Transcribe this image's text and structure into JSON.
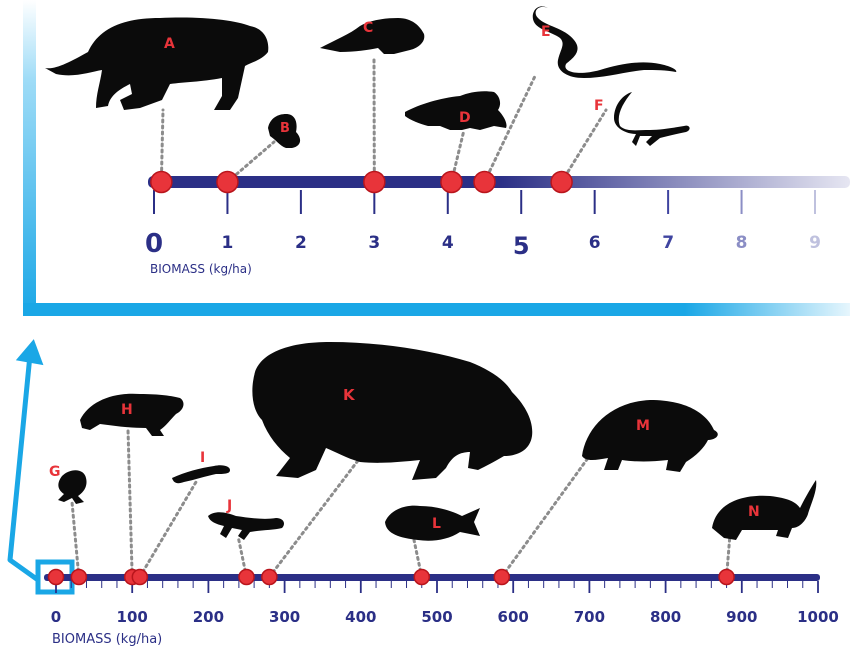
{
  "top_axis": {
    "title": "BIOMASS (kg/ha)",
    "ticks": [
      "0",
      "1",
      "2",
      "3",
      "4",
      "5",
      "6",
      "7",
      "8",
      "9"
    ],
    "range": [
      0,
      9
    ],
    "markers": [
      {
        "letter": "A",
        "value": 0.1
      },
      {
        "letter": "B",
        "value": 1.0
      },
      {
        "letter": "C",
        "value": 3.0
      },
      {
        "letter": "D",
        "value": 4.05
      },
      {
        "letter": "E",
        "value": 4.5
      },
      {
        "letter": "F",
        "value": 5.55
      }
    ]
  },
  "bottom_axis": {
    "title": "BIOMASS (kg/ha)",
    "ticks": [
      "0",
      "100",
      "200",
      "300",
      "400",
      "500",
      "600",
      "700",
      "800",
      "900",
      "1000"
    ],
    "range": [
      0,
      1000
    ],
    "markers": [
      {
        "letter": "G",
        "value": 30
      },
      {
        "letter": "H",
        "value": 100
      },
      {
        "letter": "I",
        "value": 110
      },
      {
        "letter": "J",
        "value": 250
      },
      {
        "letter": "K",
        "value": 280
      },
      {
        "letter": "L",
        "value": 480
      },
      {
        "letter": "M",
        "value": 585
      },
      {
        "letter": "N",
        "value": 880
      }
    ]
  },
  "colors": {
    "axis": "#2b2f86",
    "marker": "#e8343a",
    "frame": "#1aa7e6",
    "silhouette": "#0b0b0b"
  }
}
